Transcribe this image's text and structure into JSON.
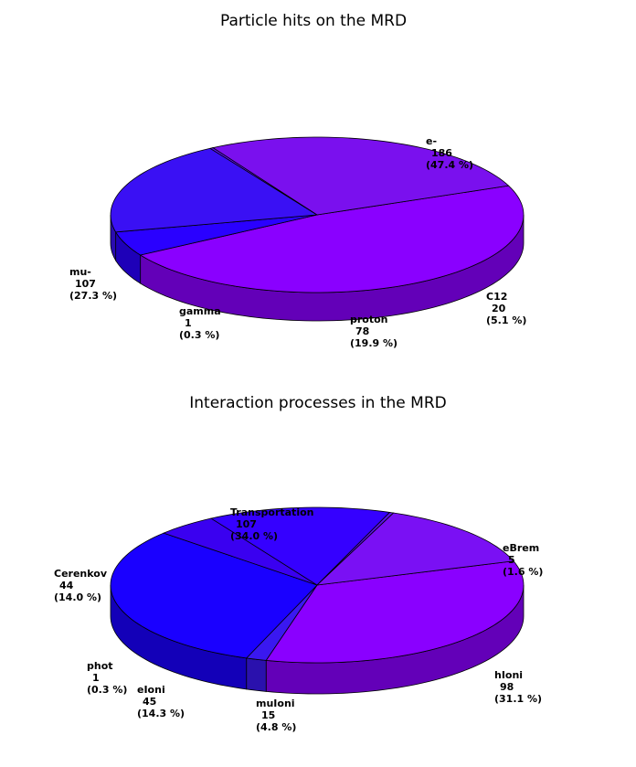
{
  "chart_data": [
    {
      "type": "pie",
      "style": "3d",
      "title": "Particle hits on the MRD",
      "slices": [
        {
          "name": "e-",
          "value": 186,
          "percent": "(47.4 %)",
          "color": "#8a00ff"
        },
        {
          "name": "C12",
          "value": 20,
          "percent": "(5.1 %)",
          "color": "#2a00ff"
        },
        {
          "name": "proton",
          "value": 78,
          "percent": "(19.9 %)",
          "color": "#3a10f4"
        },
        {
          "name": "gamma",
          "value": 1,
          "percent": "(0.3 %)",
          "color": "#5a10e8"
        },
        {
          "name": "mu-",
          "value": 107,
          "percent": "(27.3 %)",
          "color": "#7a10ee"
        }
      ]
    },
    {
      "type": "pie",
      "style": "3d",
      "title": "Interaction processes in the MRD",
      "slices": [
        {
          "name": "Transportation",
          "value": 107,
          "percent": "(34.0 %)",
          "color": "#8a00ff"
        },
        {
          "name": "eBrem",
          "value": 5,
          "percent": "(1.6 %)",
          "color": "#3a18f0"
        },
        {
          "name": "hIoni",
          "value": 98,
          "percent": "(31.1 %)",
          "color": "#1a00ff"
        },
        {
          "name": "muIoni",
          "value": 15,
          "percent": "(4.8 %)",
          "color": "#3a00f0"
        },
        {
          "name": "eIoni",
          "value": 45,
          "percent": "(14.3 %)",
          "color": "#3500ff"
        },
        {
          "name": "phot",
          "value": 1,
          "percent": "(0.3 %)",
          "color": "#5a10e8"
        },
        {
          "name": "Cerenkov",
          "value": 44,
          "percent": "(14.0 %)",
          "color": "#7a10f4"
        }
      ]
    }
  ]
}
